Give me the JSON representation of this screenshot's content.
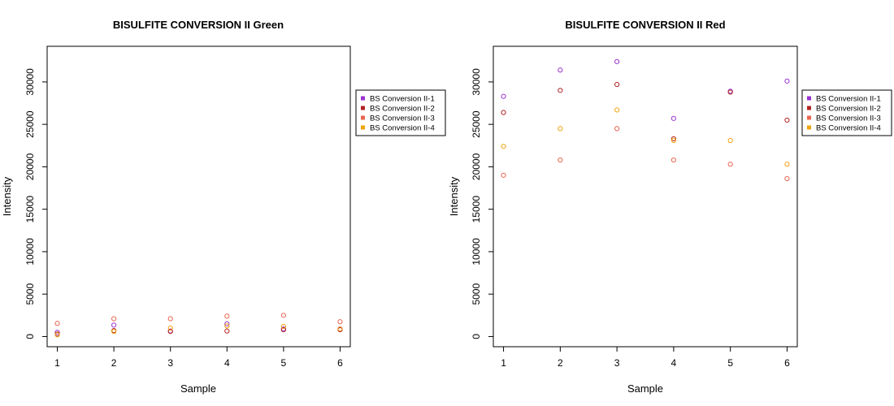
{
  "chart_data": [
    {
      "type": "scatter",
      "title": "BISULFITE CONVERSION II Green",
      "xlabel": "Sample",
      "ylabel": "Intensity",
      "x": [
        1,
        2,
        3,
        4,
        5,
        6
      ],
      "xticks": [
        1,
        2,
        3,
        4,
        5,
        6
      ],
      "yticks": [
        0,
        5000,
        10000,
        15000,
        20000,
        25000,
        30000
      ],
      "xlim": [
        0.82,
        6.18
      ],
      "ylim": [
        -1200,
        34200
      ],
      "grid": false,
      "legend_position": "right",
      "series": [
        {
          "name": "BS Conversion II-1",
          "color": "#9a32cd",
          "values": [
            500,
            1350,
            650,
            1500,
            900,
            900
          ]
        },
        {
          "name": "BS Conversion II-2",
          "color": "#b22222",
          "values": [
            300,
            700,
            600,
            650,
            800,
            800
          ]
        },
        {
          "name": "BS Conversion II-3",
          "color": "#e9654f",
          "values": [
            1550,
            2100,
            2100,
            2400,
            2500,
            1750
          ]
        },
        {
          "name": "BS Conversion II-4",
          "color": "#f2a20d",
          "values": [
            200,
            600,
            1000,
            1250,
            1200,
            900
          ]
        }
      ]
    },
    {
      "type": "scatter",
      "title": "BISULFITE CONVERSION II Red",
      "xlabel": "Sample",
      "ylabel": "Intensity",
      "x": [
        1,
        2,
        3,
        4,
        5,
        6
      ],
      "xticks": [
        1,
        2,
        3,
        4,
        5,
        6
      ],
      "yticks": [
        0,
        5000,
        10000,
        15000,
        20000,
        25000,
        30000
      ],
      "xlim": [
        0.82,
        6.18
      ],
      "ylim": [
        -1200,
        34200
      ],
      "grid": false,
      "legend_position": "right",
      "series": [
        {
          "name": "BS Conversion II-1",
          "color": "#9a32cd",
          "values": [
            28300,
            31400,
            32400,
            25700,
            28900,
            30100
          ]
        },
        {
          "name": "BS Conversion II-2",
          "color": "#b22222",
          "values": [
            26400,
            29000,
            29700,
            23300,
            28800,
            25500
          ]
        },
        {
          "name": "BS Conversion II-3",
          "color": "#e9654f",
          "values": [
            19000,
            20800,
            24500,
            20800,
            20300,
            18600
          ]
        },
        {
          "name": "BS Conversion II-4",
          "color": "#f2a20d",
          "values": [
            22400,
            24500,
            26700,
            23100,
            23100,
            20300
          ]
        }
      ]
    }
  ]
}
